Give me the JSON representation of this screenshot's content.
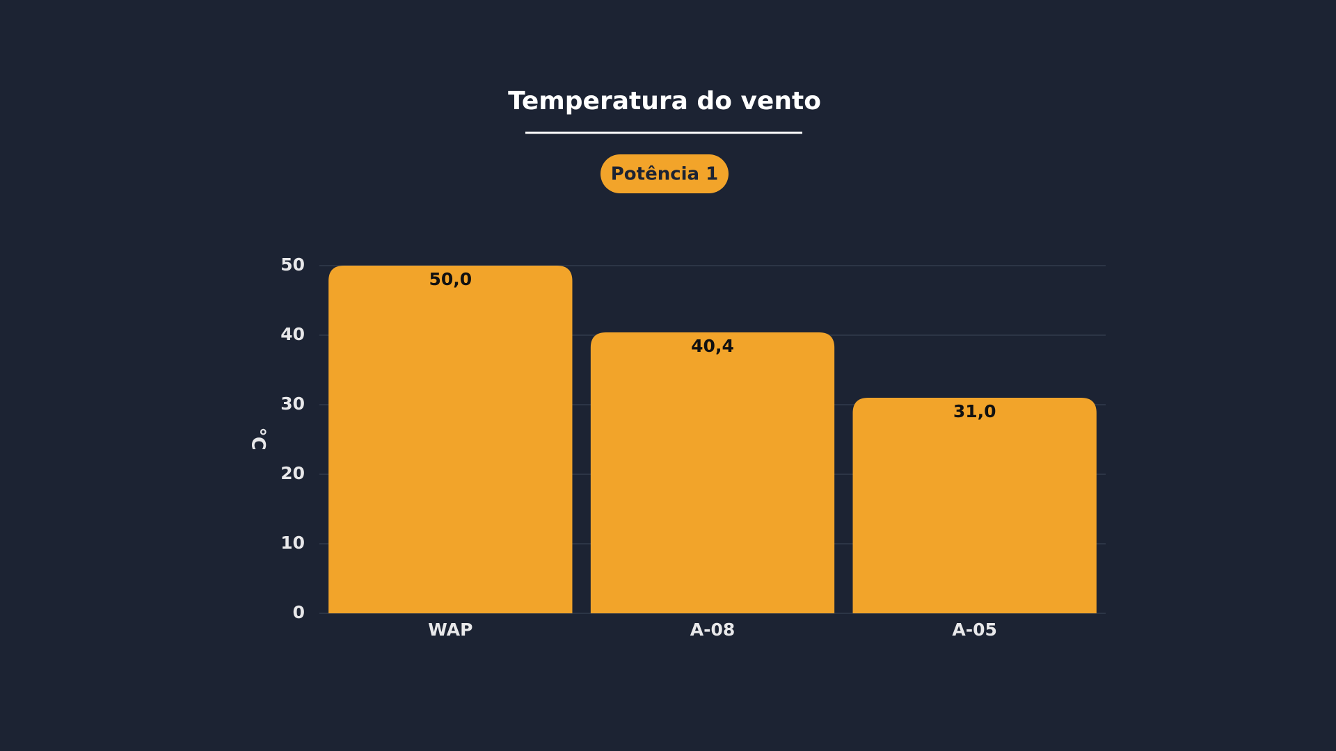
{
  "chart_data": {
    "type": "bar",
    "title": "Temperatura do vento",
    "subtitle": "Potência 1",
    "y_label": "°C",
    "categories": [
      "WAP",
      "A-08",
      "A-05"
    ],
    "values": [
      50.0,
      40.4,
      31.0
    ],
    "value_labels": [
      "50,0",
      "40,4",
      "31,0"
    ],
    "color": "#f2a42a",
    "ylim": [
      0,
      50
    ],
    "yticks": [
      0,
      10,
      20,
      30,
      40,
      50
    ],
    "grid": true
  }
}
